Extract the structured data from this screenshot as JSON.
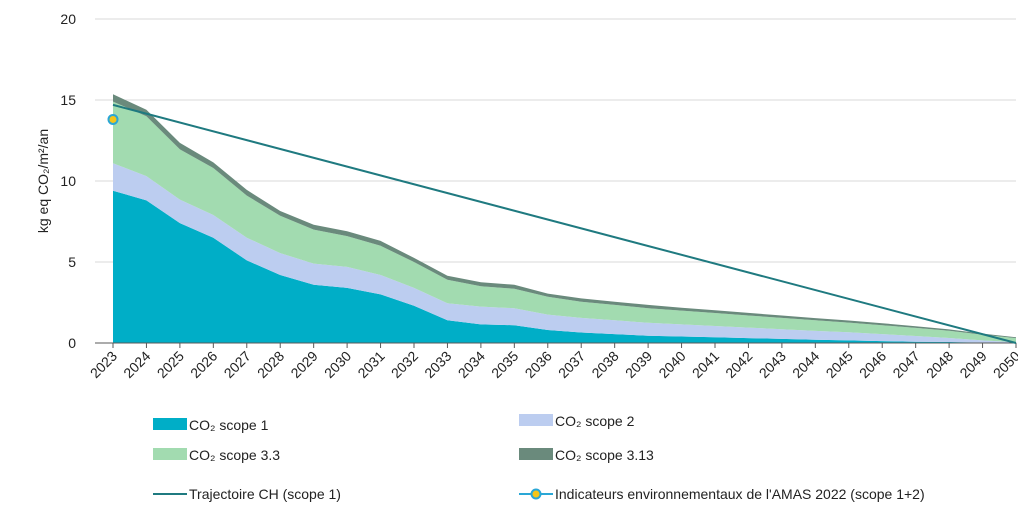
{
  "chart_data": {
    "type": "area",
    "ylabel": "kg eq CO₂/m²/an",
    "ylim": [
      0,
      20
    ],
    "yticks": [
      "0",
      "5",
      "10",
      "15",
      "20"
    ],
    "grid": "horizontal",
    "legend_position": "bottom",
    "x": [
      "2023",
      "2024",
      "2025",
      "2026",
      "2027",
      "2028",
      "2029",
      "2030",
      "2031",
      "2032",
      "2033",
      "2034",
      "2035",
      "2036",
      "2037",
      "2038",
      "2039",
      "2040",
      "2041",
      "2042",
      "2043",
      "2044",
      "2045",
      "2046",
      "2047",
      "2048",
      "2049",
      "2050"
    ],
    "stacked_series": [
      {
        "name": "CO₂ scope 1",
        "color": "#00AEC7",
        "values": [
          9.4,
          8.8,
          7.4,
          6.5,
          5.1,
          4.2,
          3.6,
          3.4,
          3.0,
          2.3,
          1.4,
          1.15,
          1.1,
          0.8,
          0.65,
          0.55,
          0.45,
          0.4,
          0.35,
          0.3,
          0.25,
          0.2,
          0.16,
          0.12,
          0.08,
          0.06,
          0.03,
          0.0
        ]
      },
      {
        "name": "CO₂ scope 2",
        "color": "#BCCDF0",
        "values": [
          1.7,
          1.5,
          1.45,
          1.4,
          1.4,
          1.35,
          1.3,
          1.3,
          1.2,
          1.1,
          1.05,
          1.1,
          1.05,
          0.95,
          0.9,
          0.85,
          0.8,
          0.75,
          0.7,
          0.65,
          0.6,
          0.55,
          0.5,
          0.43,
          0.35,
          0.25,
          0.13,
          0.05
        ]
      },
      {
        "name": "CO₂ scope 3.3",
        "color": "#A2DBB0",
        "values": [
          3.8,
          3.7,
          3.1,
          2.9,
          2.6,
          2.3,
          2.1,
          1.9,
          1.8,
          1.6,
          1.45,
          1.25,
          1.2,
          1.1,
          1.0,
          0.95,
          0.9,
          0.85,
          0.8,
          0.75,
          0.7,
          0.65,
          0.6,
          0.55,
          0.5,
          0.45,
          0.35,
          0.25
        ]
      },
      {
        "name": "CO₂ scope 3.13",
        "color": "#6A8A7C",
        "values": [
          0.45,
          0.4,
          0.4,
          0.35,
          0.35,
          0.3,
          0.3,
          0.3,
          0.3,
          0.25,
          0.25,
          0.25,
          0.25,
          0.2,
          0.2,
          0.2,
          0.2,
          0.18,
          0.17,
          0.16,
          0.15,
          0.14,
          0.13,
          0.12,
          0.1,
          0.08,
          0.07,
          0.05
        ]
      }
    ],
    "line_series": [
      {
        "name": "Trajectoire CH (scope 1)",
        "color": "#1F7A80",
        "x": [
          "2023",
          "2050"
        ],
        "values": [
          14.7,
          0.0
        ]
      }
    ],
    "point_series": [
      {
        "name": "Indicateurs environnementaux de l'AMAS 2022 (scope 1+2)",
        "color": "#2AA7D6",
        "fill": "#F5C518",
        "x": [
          "2023"
        ],
        "values": [
          13.8
        ]
      }
    ]
  }
}
